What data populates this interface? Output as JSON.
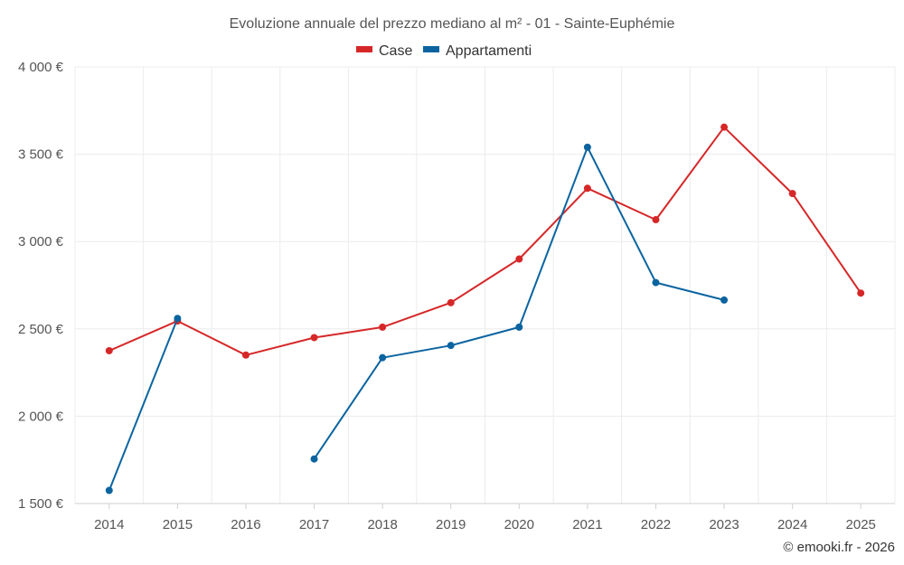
{
  "chart_data": {
    "type": "line",
    "title": "Evoluzione annuale del prezzo mediano al m² - 01 - Sainte-Euphémie",
    "categories": [
      "2014",
      "2015",
      "2016",
      "2017",
      "2018",
      "2019",
      "2020",
      "2021",
      "2022",
      "2023",
      "2024",
      "2025"
    ],
    "series": [
      {
        "name": "Case",
        "color": "#d62728",
        "values": [
          2375,
          2545,
          2350,
          2450,
          2510,
          2650,
          2900,
          3305,
          3125,
          3655,
          3275,
          2705
        ]
      },
      {
        "name": "Appartamenti",
        "color": "#0b64a0",
        "values": [
          1575,
          2560,
          null,
          1755,
          2335,
          2405,
          2510,
          3540,
          2765,
          2665,
          null,
          null
        ]
      }
    ],
    "ylim": [
      1500,
      4000
    ],
    "yticks": [
      1500,
      2000,
      2500,
      3000,
      3500,
      4000
    ],
    "ytick_labels": [
      "1 500 €",
      "2 000 €",
      "2 500 €",
      "3 000 €",
      "3 500 €",
      "4 000 €"
    ],
    "xlabel": "",
    "ylabel": "",
    "grid": true,
    "legend_position": "top-center"
  },
  "credit": "© emooki.fr - 2026"
}
